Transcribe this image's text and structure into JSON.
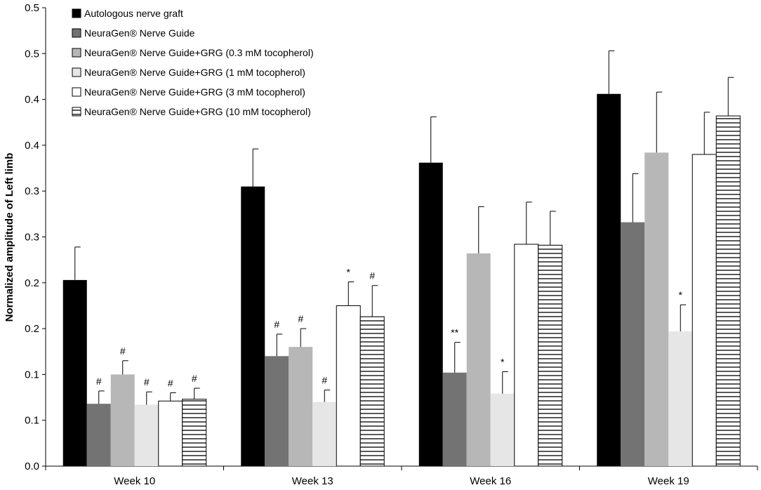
{
  "chart_data": {
    "type": "bar",
    "title": "",
    "xlabel": "",
    "ylabel": "Normalized amplitude of Left limb",
    "ylim": [
      0,
      0.5
    ],
    "y_tick_labels": [
      "0.0",
      "0.1",
      "0.1",
      "0.2",
      "0.2",
      "0.3",
      "0.3",
      "0.4",
      "0.4",
      "0.5",
      "0.5"
    ],
    "categories": [
      "Week 10",
      "Week 13",
      "Week 16",
      "Week 19"
    ],
    "legend_position": "top-left",
    "series": [
      {
        "name": "Autologous nerve graft",
        "fill": "#000000",
        "pattern": "solid",
        "values": [
          0.203,
          0.305,
          0.331,
          0.406
        ],
        "errors": [
          0.036,
          0.041,
          0.05,
          0.047
        ],
        "annotations": [
          "",
          "",
          "",
          ""
        ]
      },
      {
        "name": "NeuraGen® Nerve Guide",
        "fill": "#737373",
        "pattern": "solid",
        "values": [
          0.068,
          0.12,
          0.102,
          0.266
        ],
        "errors": [
          0.014,
          0.024,
          0.033,
          0.053
        ],
        "annotations": [
          "#",
          "#",
          "**",
          ""
        ]
      },
      {
        "name": "NeuraGen® Nerve Guide+GRG (0.3 mM tocopherol)",
        "fill": "#b7b7b7",
        "pattern": "solid",
        "values": [
          0.1,
          0.13,
          0.232,
          0.342
        ],
        "errors": [
          0.015,
          0.02,
          0.051,
          0.066
        ],
        "annotations": [
          "#",
          "#",
          "",
          ""
        ]
      },
      {
        "name": "NeuraGen® Nerve Guide+GRG (1 mM tocopherol)",
        "fill": "#e6e6e6",
        "pattern": "solid",
        "values": [
          0.067,
          0.07,
          0.079,
          0.147
        ],
        "errors": [
          0.014,
          0.013,
          0.024,
          0.029
        ],
        "annotations": [
          "#",
          "#",
          "*",
          "*"
        ]
      },
      {
        "name": "NeuraGen® Nerve Guide+GRG (3 mM tocopherol)",
        "fill": "#ffffff",
        "pattern": "solid",
        "values": [
          0.071,
          0.175,
          0.242,
          0.34
        ],
        "errors": [
          0.009,
          0.026,
          0.046,
          0.046
        ],
        "annotations": [
          "#",
          "*",
          "",
          ""
        ]
      },
      {
        "name": "NeuraGen® Nerve Guide+GRG (10 mM tocopherol)",
        "fill": "#ffffff",
        "pattern": "hstripes",
        "values": [
          0.073,
          0.163,
          0.241,
          0.382
        ],
        "errors": [
          0.012,
          0.034,
          0.037,
          0.042
        ],
        "annotations": [
          "#",
          "#",
          "",
          ""
        ]
      }
    ]
  }
}
